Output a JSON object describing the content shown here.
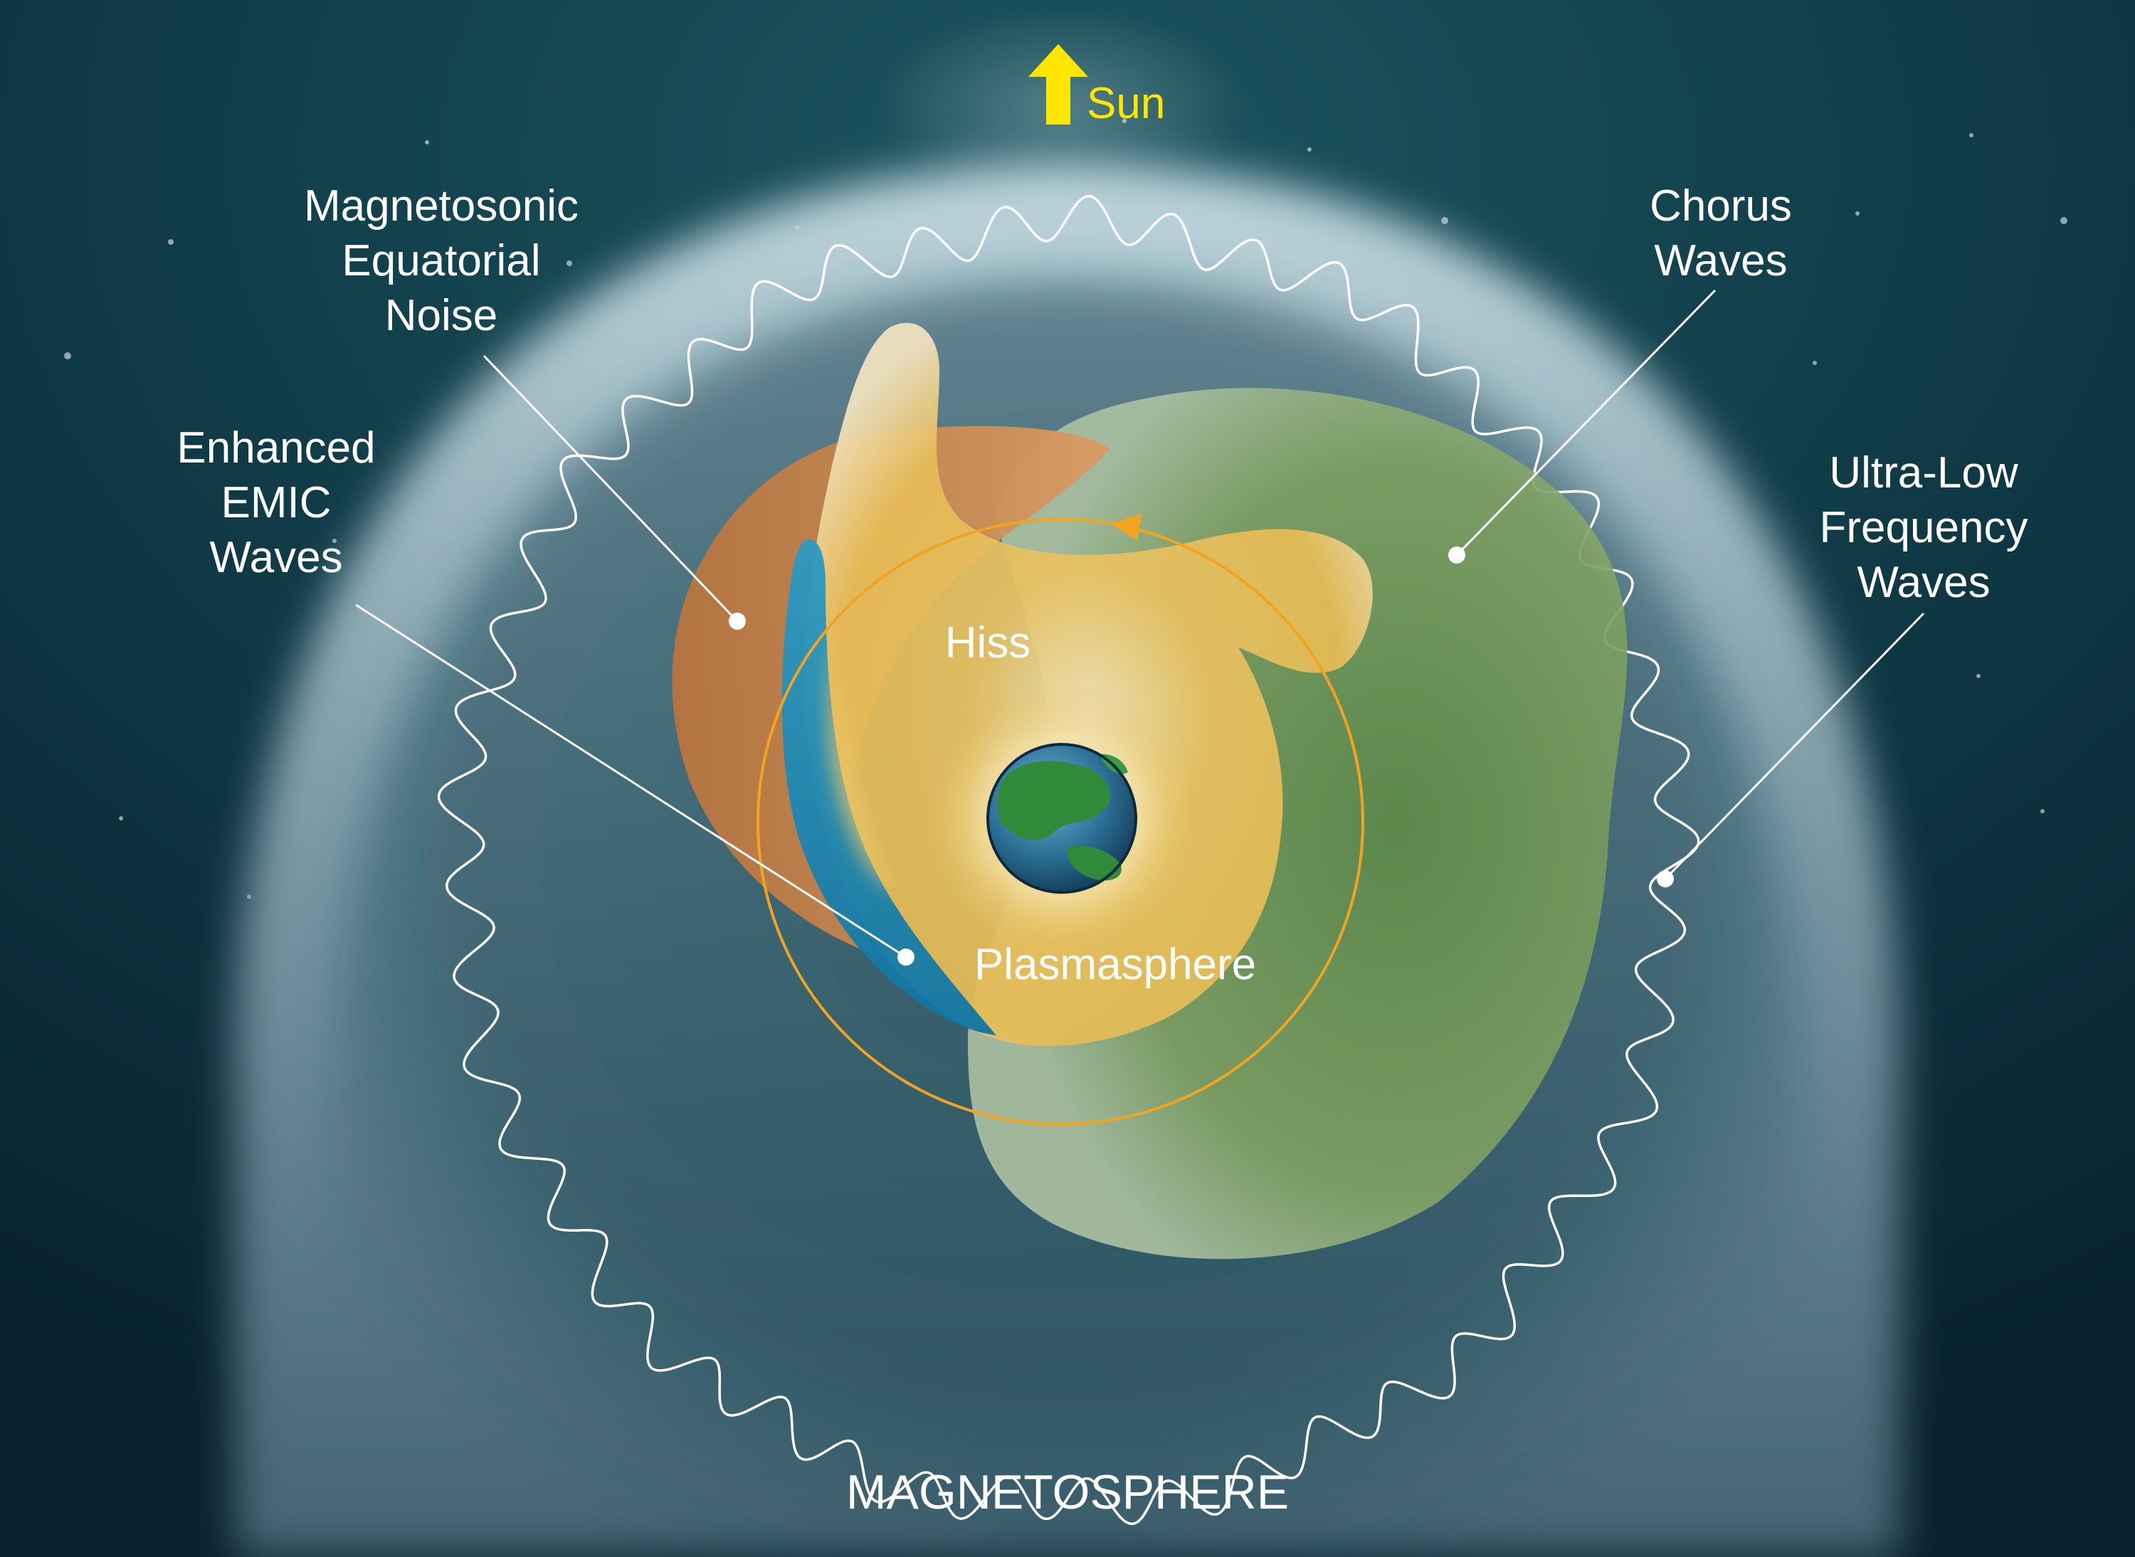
{
  "diagram": {
    "title": "MAGNETOSPHERE",
    "sun_label": "Sun",
    "labels": {
      "magnetosonic": [
        "Magnetosonic",
        "Equatorial",
        "Noise"
      ],
      "enhanced_emic": [
        "Enhanced",
        "EMIC",
        "Waves"
      ],
      "chorus": [
        "Chorus",
        "Waves"
      ],
      "ulf": [
        "Ultra-Low",
        "Frequency",
        "Waves"
      ],
      "hiss": "Hiss",
      "plasmasphere": "Plasmasphere"
    },
    "colors": {
      "background": "#0b2a36",
      "magnetosphere_glow": "#bcd3dc",
      "sun_arrow": "#ffe600",
      "chorus_region": "#7f9f56",
      "emic_region": "#c98a52",
      "emic_enhanced": "#1f86b0",
      "hiss_region": "#e8c058",
      "orbit": "#f0a420",
      "label_text": "#ffffff"
    }
  }
}
